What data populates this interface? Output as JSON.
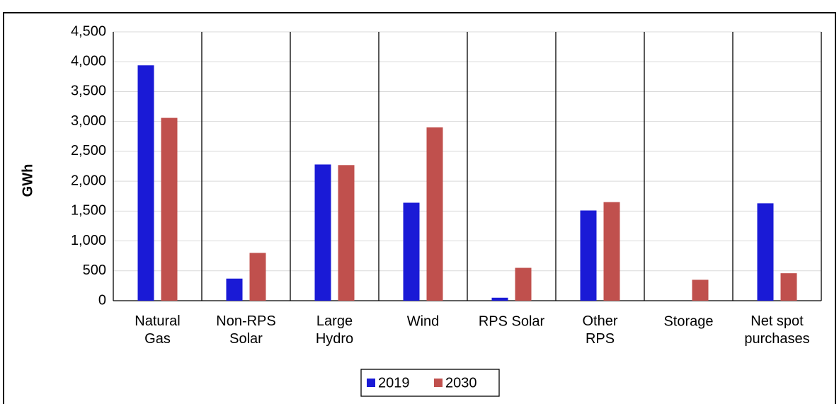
{
  "chart_data": {
    "type": "bar",
    "y_label": "GWh",
    "categories": [
      "Natural\nGas",
      "Non-RPS\nSolar",
      "Large\nHydro",
      "Wind",
      "RPS Solar",
      "Other\nRPS",
      "Storage",
      "Net spot\npurchases"
    ],
    "series": [
      {
        "name": "2019",
        "color": "#1a1ad6",
        "values": [
          3940,
          370,
          2280,
          1640,
          50,
          1510,
          0,
          1630
        ]
      },
      {
        "name": "2030",
        "color": "#c0504d",
        "values": [
          3060,
          800,
          2270,
          2900,
          550,
          1650,
          350,
          460
        ]
      }
    ],
    "ylim": [
      0,
      4500
    ],
    "yticks": [
      0,
      500,
      {
        "value": 1000,
        "label": "1,000"
      },
      {
        "value": 1500,
        "label": "1,500"
      },
      {
        "value": 2000,
        "label": "2,000"
      },
      {
        "value": 2500,
        "label": "2,500"
      },
      {
        "value": 3000,
        "label": "3,000"
      },
      {
        "value": 3500,
        "label": "3,500"
      },
      {
        "value": 4000,
        "label": "4,000"
      },
      {
        "value": 4500,
        "label": "4,500"
      }
    ],
    "grid": true,
    "legend": "bottom"
  }
}
